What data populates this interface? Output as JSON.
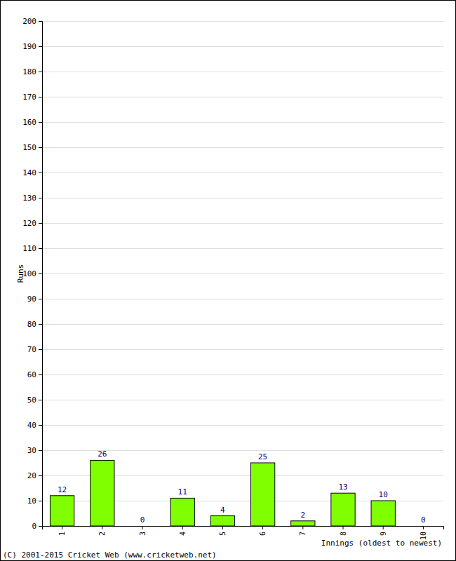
{
  "chart_data": {
    "type": "bar",
    "categories": [
      "1",
      "2",
      "3",
      "4",
      "5",
      "6",
      "7",
      "8",
      "9",
      "10"
    ],
    "values": [
      12,
      26,
      0,
      11,
      4,
      25,
      2,
      13,
      10,
      0
    ],
    "color": "#80ff00",
    "ylim": [
      0,
      200
    ],
    "yticks": [
      0,
      10,
      20,
      30,
      40,
      50,
      60,
      70,
      80,
      90,
      100,
      110,
      120,
      130,
      140,
      150,
      160,
      170,
      180,
      190,
      200
    ],
    "grid": true,
    "data_labels": true,
    "y_label": "Runs",
    "x_label": "Innings (oldest to newest)",
    "annotation": "(C) 2001-2015 Cricket Web (www.cricketweb.net)"
  }
}
